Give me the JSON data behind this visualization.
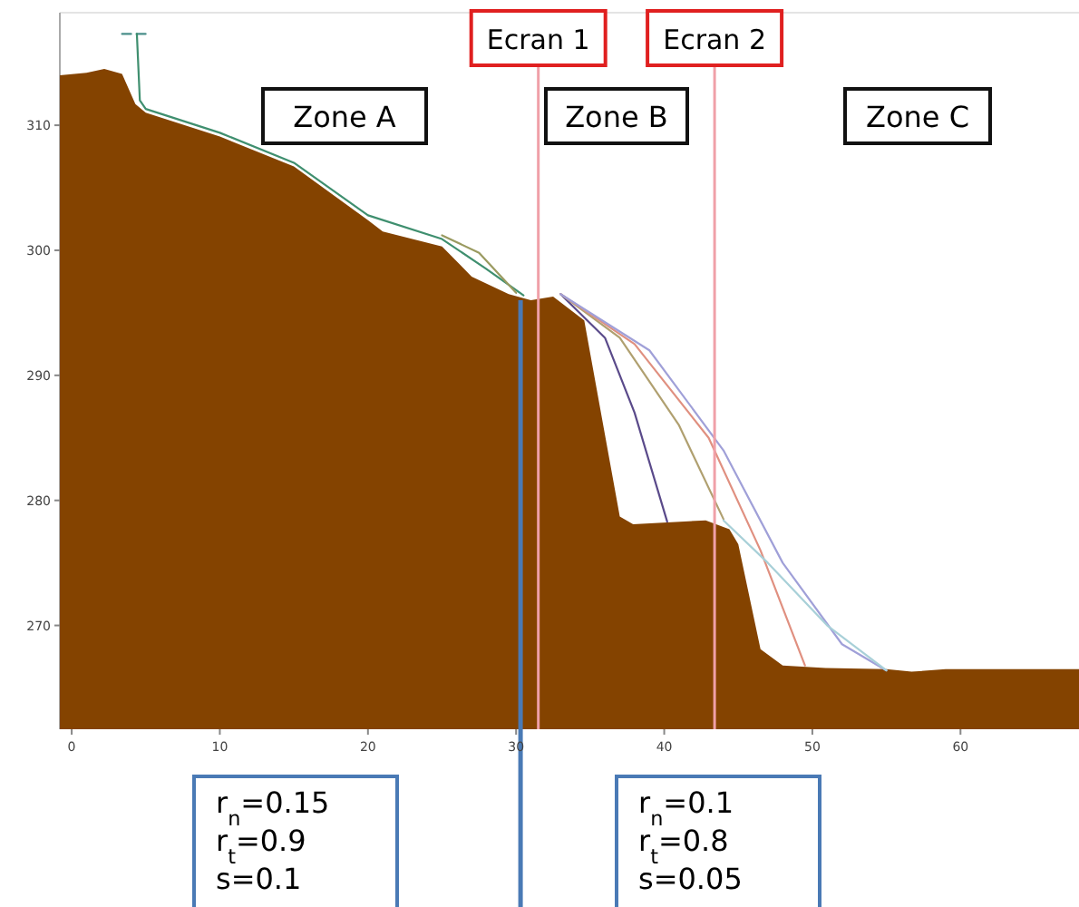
{
  "chart_data": {
    "type": "area",
    "xlim": [
      -0.8,
      68
    ],
    "ylim": [
      261.7,
      319
    ],
    "xticks": [
      0,
      10,
      20,
      30,
      40,
      50,
      60
    ],
    "yticks": [
      270,
      280,
      290,
      300,
      310
    ],
    "grid": false,
    "series": [
      {
        "color": "#844300",
        "x": [
          -0.8,
          1,
          2.2,
          3.4,
          4.3,
          5,
          10,
          15,
          20,
          21,
          25,
          27,
          29.5,
          31,
          32.5,
          34.6,
          37,
          37.9,
          42.8,
          44.4,
          45,
          46.5,
          48,
          50.9,
          55,
          56.7,
          59,
          68
        ],
        "values": [
          314,
          314.2,
          314.5,
          314.1,
          311.7,
          311,
          309.1,
          306.7,
          302.4,
          301.5,
          300.3,
          297.9,
          296.5,
          296,
          296.3,
          294.4,
          278.7,
          278.1,
          278.4,
          277.7,
          276.5,
          268.1,
          266.8,
          266.6,
          266.5,
          266.3,
          266.5,
          266.5
        ]
      },
      {
        "type": "line",
        "color": "#4a8f8a",
        "x": [
          3.4,
          4.4,
          5.3
        ],
        "values": [
          317.3,
          317.3,
          317.3
        ],
        "line_style": "dashed"
      },
      {
        "type": "line",
        "color": "#3f8f6f",
        "x": [
          4.4,
          4.6,
          5,
          10,
          15,
          20,
          25,
          28,
          30.5
        ],
        "values": [
          317.3,
          312,
          311.3,
          309.4,
          307,
          302.8,
          300.9,
          298.5,
          296.4
        ]
      },
      {
        "type": "line",
        "color": "#9a9a60",
        "x": [
          25,
          27.5,
          30
        ],
        "values": [
          301.2,
          299.8,
          296.6
        ]
      },
      {
        "type": "line",
        "color": "#5a4a8a",
        "x": [
          33,
          36,
          38,
          40.2
        ],
        "values": [
          296.5,
          293,
          287,
          278.3
        ]
      },
      {
        "type": "line",
        "color": "#b0a070",
        "x": [
          33,
          37,
          41,
          44
        ],
        "values": [
          296.5,
          293,
          286,
          278.5
        ]
      },
      {
        "type": "line",
        "color": "#e09080",
        "x": [
          33,
          38,
          43,
          46.5,
          49.5
        ],
        "values": [
          296.5,
          292.5,
          285,
          276,
          266.8
        ]
      },
      {
        "type": "line",
        "color": "#a0a0d8",
        "x": [
          33,
          39,
          44,
          48,
          52,
          55
        ],
        "values": [
          296.5,
          292,
          284,
          275,
          268.5,
          266.4
        ]
      },
      {
        "type": "line",
        "color": "#a8d0d8",
        "x": [
          44,
          47,
          51,
          55
        ],
        "values": [
          278.4,
          275,
          270,
          266.4
        ]
      }
    ],
    "ref_lines": [
      {
        "axis": "x",
        "value": 30.3,
        "color": "#4a7ab5"
      },
      {
        "axis": "x",
        "value": 31.5,
        "label": "Ecran 1",
        "color": "#f0a0a8"
      },
      {
        "axis": "x",
        "value": 43.4,
        "label": "Ecran 2",
        "color": "#f0a0a8"
      }
    ],
    "annotations": [
      "Zone A",
      "Zone B",
      "Zone C",
      "r$_{n}$=0.15\nr$_{t}$=0.9\ns=0.1",
      "r$_{n}$=0.1\nr$_{t}$=0.8\ns=0.05"
    ]
  }
}
